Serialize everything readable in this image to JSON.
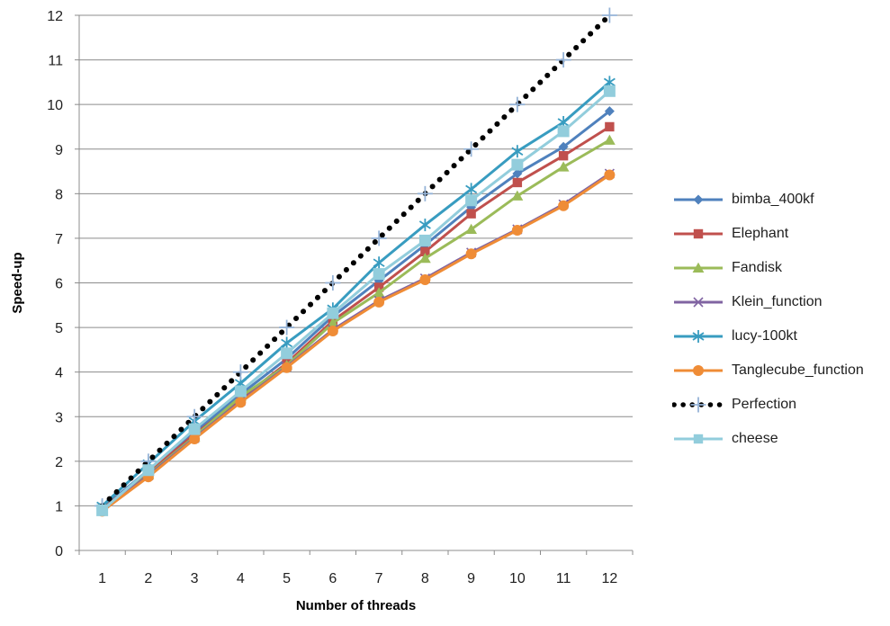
{
  "chart_data": {
    "type": "line",
    "title": "",
    "xlabel": "Number of threads",
    "ylabel": "Speed-up",
    "x": [
      1,
      2,
      3,
      4,
      5,
      6,
      7,
      8,
      9,
      10,
      11,
      12
    ],
    "yticks": [
      0,
      1,
      2,
      3,
      4,
      5,
      6,
      7,
      8,
      9,
      10,
      11,
      12
    ],
    "ylim": [
      0,
      12
    ],
    "grid": "horizontal-on",
    "legend_position": "right",
    "gridline_color": "#8C8C8C",
    "axis_color": "#8C8C8C",
    "series": [
      {
        "name": "bimba_400kf",
        "color": "#4F81BD",
        "marker": "diamond",
        "line": "solid",
        "values": [
          0.95,
          1.8,
          2.65,
          3.5,
          4.3,
          5.25,
          6.05,
          6.85,
          7.7,
          8.45,
          9.05,
          9.85
        ]
      },
      {
        "name": "Elephant",
        "color": "#C0504D",
        "marker": "square",
        "line": "solid",
        "values": [
          0.93,
          1.75,
          2.6,
          3.4,
          4.2,
          5.15,
          5.9,
          6.7,
          7.55,
          8.25,
          8.85,
          9.5
        ]
      },
      {
        "name": "Fandisk",
        "color": "#9BBB59",
        "marker": "triangle",
        "line": "solid",
        "values": [
          0.88,
          1.7,
          2.55,
          3.45,
          4.15,
          5.1,
          5.78,
          6.55,
          7.2,
          7.95,
          8.6,
          9.2
        ]
      },
      {
        "name": "Klein_function",
        "color": "#8064A2",
        "marker": "x",
        "line": "solid",
        "values": [
          0.9,
          1.68,
          2.52,
          3.35,
          4.12,
          4.95,
          5.6,
          6.1,
          6.68,
          7.2,
          7.76,
          8.45
        ]
      },
      {
        "name": "lucy-100kt",
        "color": "#389CC0",
        "marker": "asterisk",
        "line": "solid",
        "values": [
          1.0,
          1.95,
          2.9,
          3.75,
          4.65,
          5.42,
          6.45,
          7.3,
          8.1,
          8.95,
          9.6,
          10.5
        ]
      },
      {
        "name": "Tanglecube_function",
        "color": "#EF8C36",
        "marker": "circle",
        "line": "solid",
        "values": [
          0.88,
          1.65,
          2.5,
          3.32,
          4.1,
          4.92,
          5.57,
          6.07,
          6.65,
          7.18,
          7.73,
          8.42
        ]
      },
      {
        "name": "Perfection",
        "color": "#000000",
        "marker": "plus",
        "marker_color": "#95B3D7",
        "line": "dotted",
        "values": [
          1,
          2,
          3,
          4,
          5,
          6,
          7,
          8,
          9,
          10,
          11,
          12
        ]
      },
      {
        "name": "cheese",
        "color": "#92CDDC",
        "marker": "square",
        "line": "solid",
        "values": [
          0.9,
          1.8,
          2.72,
          3.57,
          4.42,
          5.32,
          6.2,
          6.95,
          7.85,
          8.65,
          9.4,
          10.3
        ]
      }
    ]
  }
}
